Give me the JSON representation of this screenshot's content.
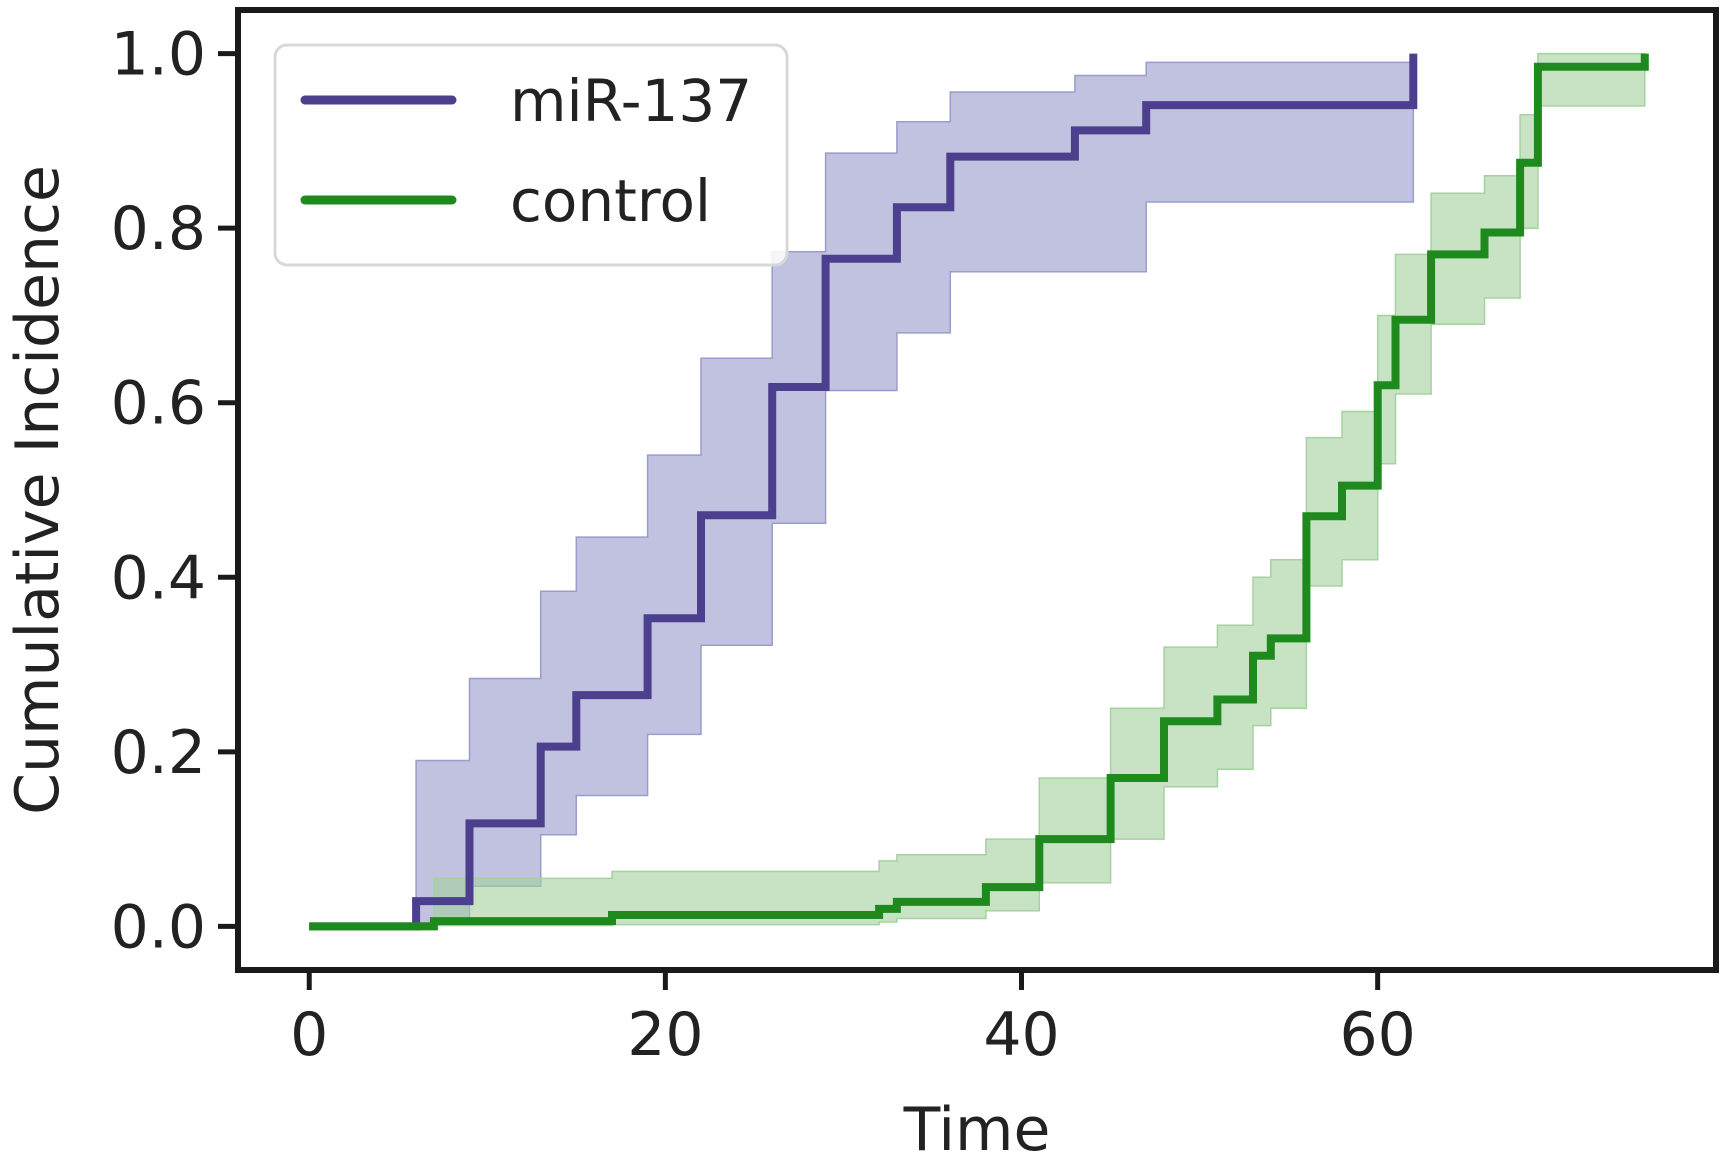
{
  "chart_data": {
    "type": "line",
    "title": "",
    "xlabel": "Time",
    "ylabel": "Cumulative Incidence",
    "xlim": [
      -4,
      79
    ],
    "ylim": [
      -0.05,
      1.05
    ],
    "xticks": [
      0,
      20,
      40,
      60
    ],
    "yticks": [
      0.0,
      0.2,
      0.4,
      0.6,
      0.8,
      1.0
    ],
    "xtick_labels": [
      "0",
      "20",
      "40",
      "60"
    ],
    "ytick_labels": [
      "0.0",
      "0.2",
      "0.4",
      "0.6",
      "0.8",
      "1.0"
    ],
    "grid": false,
    "legend_position": "top-left",
    "series": [
      {
        "name": "miR-137",
        "color": "#4b3f8e",
        "band_color": "#9a9ccc",
        "step": [
          {
            "t": 0,
            "y": 0.0,
            "lo": 0.0,
            "hi": 0.0
          },
          {
            "t": 6,
            "y": 0.029,
            "lo": 0.004,
            "hi": 0.19
          },
          {
            "t": 9,
            "y": 0.118,
            "lo": 0.046,
            "hi": 0.284
          },
          {
            "t": 13,
            "y": 0.206,
            "lo": 0.105,
            "hi": 0.384
          },
          {
            "t": 15,
            "y": 0.265,
            "lo": 0.15,
            "hi": 0.446
          },
          {
            "t": 19,
            "y": 0.353,
            "lo": 0.22,
            "hi": 0.54
          },
          {
            "t": 22,
            "y": 0.471,
            "lo": 0.322,
            "hi": 0.651
          },
          {
            "t": 26,
            "y": 0.618,
            "lo": 0.462,
            "hi": 0.773
          },
          {
            "t": 29,
            "y": 0.765,
            "lo": 0.614,
            "hi": 0.886
          },
          {
            "t": 33,
            "y": 0.824,
            "lo": 0.68,
            "hi": 0.922
          },
          {
            "t": 36,
            "y": 0.882,
            "lo": 0.75,
            "hi": 0.956
          },
          {
            "t": 43,
            "y": 0.912,
            "lo": 0.75,
            "hi": 0.975
          },
          {
            "t": 47,
            "y": 0.941,
            "lo": 0.83,
            "hi": 0.99
          },
          {
            "t": 62,
            "y": 1.0,
            "lo": 0.83,
            "hi": 0.99
          }
        ]
      },
      {
        "name": "control",
        "color": "#1e8a1e",
        "band_color": "#a5d2a0",
        "step": [
          {
            "t": 0,
            "y": 0.0,
            "lo": 0.0,
            "hi": 0.0
          },
          {
            "t": 7,
            "y": 0.006,
            "lo": 0.001,
            "hi": 0.055
          },
          {
            "t": 17,
            "y": 0.013,
            "lo": 0.002,
            "hi": 0.063
          },
          {
            "t": 32,
            "y": 0.02,
            "lo": 0.005,
            "hi": 0.075
          },
          {
            "t": 33,
            "y": 0.028,
            "lo": 0.009,
            "hi": 0.082
          },
          {
            "t": 38,
            "y": 0.045,
            "lo": 0.018,
            "hi": 0.1
          },
          {
            "t": 41,
            "y": 0.1,
            "lo": 0.05,
            "hi": 0.17
          },
          {
            "t": 45,
            "y": 0.17,
            "lo": 0.1,
            "hi": 0.25
          },
          {
            "t": 48,
            "y": 0.235,
            "lo": 0.16,
            "hi": 0.32
          },
          {
            "t": 51,
            "y": 0.26,
            "lo": 0.18,
            "hi": 0.345
          },
          {
            "t": 53,
            "y": 0.31,
            "lo": 0.23,
            "hi": 0.4
          },
          {
            "t": 54,
            "y": 0.33,
            "lo": 0.25,
            "hi": 0.42
          },
          {
            "t": 56,
            "y": 0.47,
            "lo": 0.39,
            "hi": 0.56
          },
          {
            "t": 58,
            "y": 0.505,
            "lo": 0.42,
            "hi": 0.59
          },
          {
            "t": 60,
            "y": 0.62,
            "lo": 0.53,
            "hi": 0.7
          },
          {
            "t": 61,
            "y": 0.695,
            "lo": 0.61,
            "hi": 0.77
          },
          {
            "t": 63,
            "y": 0.77,
            "lo": 0.69,
            "hi": 0.84
          },
          {
            "t": 66,
            "y": 0.795,
            "lo": 0.72,
            "hi": 0.86
          },
          {
            "t": 68,
            "y": 0.875,
            "lo": 0.8,
            "hi": 0.93
          },
          {
            "t": 69,
            "y": 0.985,
            "lo": 0.94,
            "hi": 1.0
          },
          {
            "t": 75,
            "y": 1.0,
            "lo": 0.94,
            "hi": 1.0
          }
        ]
      }
    ]
  }
}
